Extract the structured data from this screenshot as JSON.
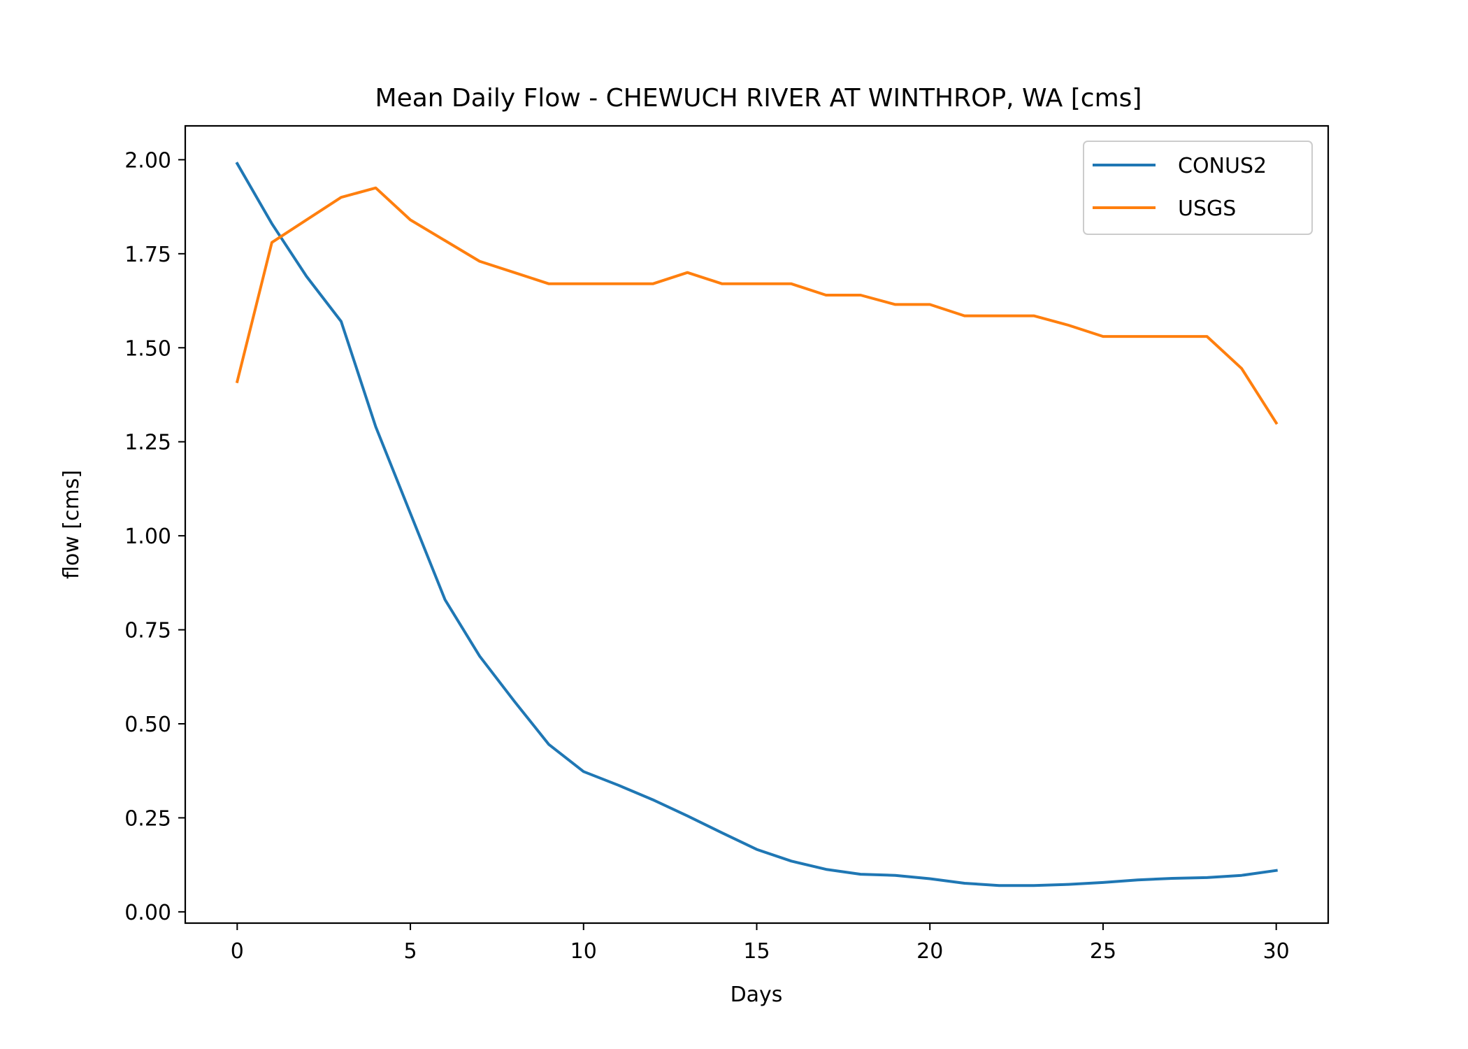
{
  "chart_data": {
    "type": "line",
    "title": "Mean Daily Flow - CHEWUCH RIVER AT WINTHROP, WA [cms]",
    "xlabel": "Days",
    "ylabel": "flow [cms]",
    "xlim": [
      -1.5,
      31.5
    ],
    "ylim": [
      -0.03,
      2.09
    ],
    "x_ticks": [
      0,
      5,
      10,
      15,
      20,
      25,
      30
    ],
    "y_ticks": [
      0.0,
      0.25,
      0.5,
      0.75,
      1.0,
      1.25,
      1.5,
      1.75,
      2.0
    ],
    "x_tick_labels": [
      "0",
      "5",
      "10",
      "15",
      "20",
      "25",
      "30"
    ],
    "y_tick_labels": [
      "0.00",
      "0.25",
      "0.50",
      "0.75",
      "1.00",
      "1.25",
      "1.50",
      "1.75",
      "2.00"
    ],
    "grid": false,
    "legend_position": "top-right",
    "x": [
      0,
      1,
      2,
      3,
      4,
      5,
      6,
      7,
      8,
      9,
      10,
      11,
      12,
      13,
      14,
      15,
      16,
      17,
      18,
      19,
      20,
      21,
      22,
      23,
      24,
      25,
      26,
      27,
      28,
      29,
      30
    ],
    "series": [
      {
        "name": "CONUS2",
        "color": "#1f77b4",
        "values": [
          1.99,
          1.83,
          1.69,
          1.57,
          1.29,
          1.06,
          0.83,
          0.68,
          0.56,
          0.445,
          0.373,
          0.337,
          0.298,
          0.255,
          0.21,
          0.166,
          0.135,
          0.113,
          0.1,
          0.097,
          0.088,
          0.076,
          0.07,
          0.07,
          0.073,
          0.078,
          0.085,
          0.089,
          0.091,
          0.097,
          0.11
        ]
      },
      {
        "name": "USGS",
        "color": "#ff7f0e",
        "values": [
          1.41,
          1.78,
          1.84,
          1.9,
          1.925,
          1.84,
          1.785,
          1.73,
          1.7,
          1.67,
          1.67,
          1.67,
          1.67,
          1.7,
          1.67,
          1.67,
          1.67,
          1.64,
          1.64,
          1.615,
          1.615,
          1.585,
          1.585,
          1.585,
          1.56,
          1.53,
          1.53,
          1.53,
          1.53,
          1.445,
          1.3
        ]
      }
    ]
  }
}
